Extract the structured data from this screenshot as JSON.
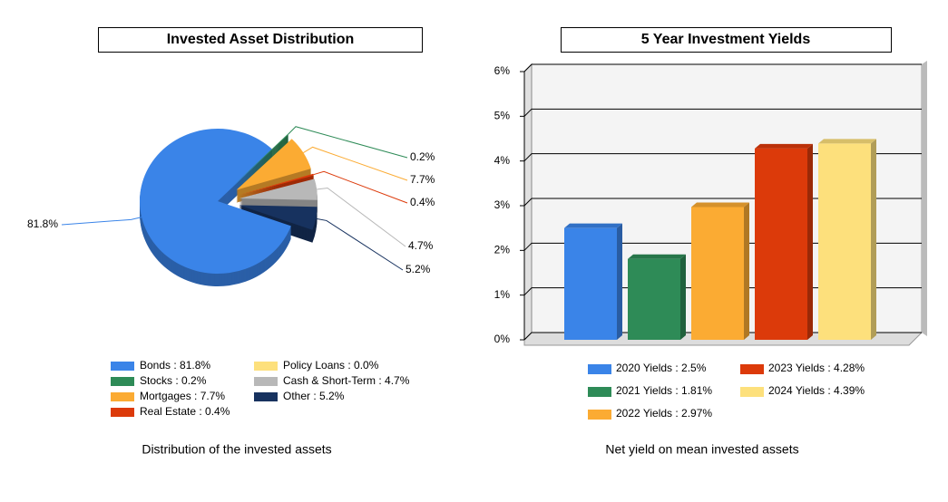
{
  "chart_data": [
    {
      "type": "pie",
      "title": "Invested Asset Distribution",
      "categories": [
        "Bonds",
        "Stocks",
        "Mortgages",
        "Real Estate",
        "Policy Loans",
        "Cash & Short-Term",
        "Other"
      ],
      "values": [
        81.8,
        0.2,
        7.7,
        0.4,
        0.0,
        4.7,
        5.2
      ],
      "value_labels": [
        "81.8%",
        "0.2%",
        "7.7%",
        "0.4%",
        null,
        "4.7%",
        "5.2%"
      ],
      "legend_labels": [
        "Bonds : 81.8%",
        "Stocks : 0.2%",
        "Mortgages : 7.7%",
        "Real Estate : 0.4%",
        "Policy Loans : 0.0%",
        "Cash & Short-Term : 4.7%",
        "Other : 5.2%"
      ],
      "colors": [
        "#3a84e8",
        "#2e8b57",
        "#fbab33",
        "#dc3a0a",
        "#fde07c",
        "#b8b8b8",
        "#17325f"
      ],
      "caption": "Distribution of the invested assets"
    },
    {
      "type": "bar",
      "title": "5 Year Investment Yields",
      "categories": [
        "2020 Yields",
        "2021 Yields",
        "2022 Yields",
        "2023 Yields",
        "2024 Yields"
      ],
      "values": [
        2.5,
        1.81,
        2.97,
        4.28,
        4.39
      ],
      "legend_labels": [
        "2020 Yields : 2.5%",
        "2021 Yields : 1.81%",
        "2022 Yields : 2.97%",
        "2023 Yields : 4.28%",
        "2024 Yields : 4.39%"
      ],
      "colors": [
        "#3a84e8",
        "#2e8b57",
        "#fbab33",
        "#dc3a0a",
        "#fde07c"
      ],
      "ylim": [
        0,
        6
      ],
      "yticks": [
        {
          "value": 0,
          "label": "0%"
        },
        {
          "value": 1,
          "label": "1%"
        },
        {
          "value": 2,
          "label": "2%"
        },
        {
          "value": 3,
          "label": "3%"
        },
        {
          "value": 4,
          "label": "4%"
        },
        {
          "value": 5,
          "label": "5%"
        },
        {
          "value": 6,
          "label": "6%"
        }
      ],
      "grid": true,
      "caption": "Net yield on mean invested assets"
    }
  ]
}
